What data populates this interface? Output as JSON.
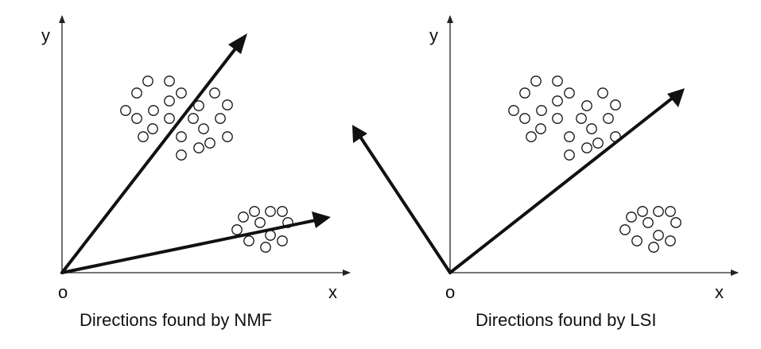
{
  "panels": [
    {
      "id": "nmf",
      "caption": "Directions found by NMF",
      "origin_label": "o",
      "x_label": "x",
      "y_label": "y"
    },
    {
      "id": "lsi",
      "caption": "Directions found by LSI",
      "origin_label": "o",
      "x_label": "x",
      "y_label": "y"
    }
  ]
}
